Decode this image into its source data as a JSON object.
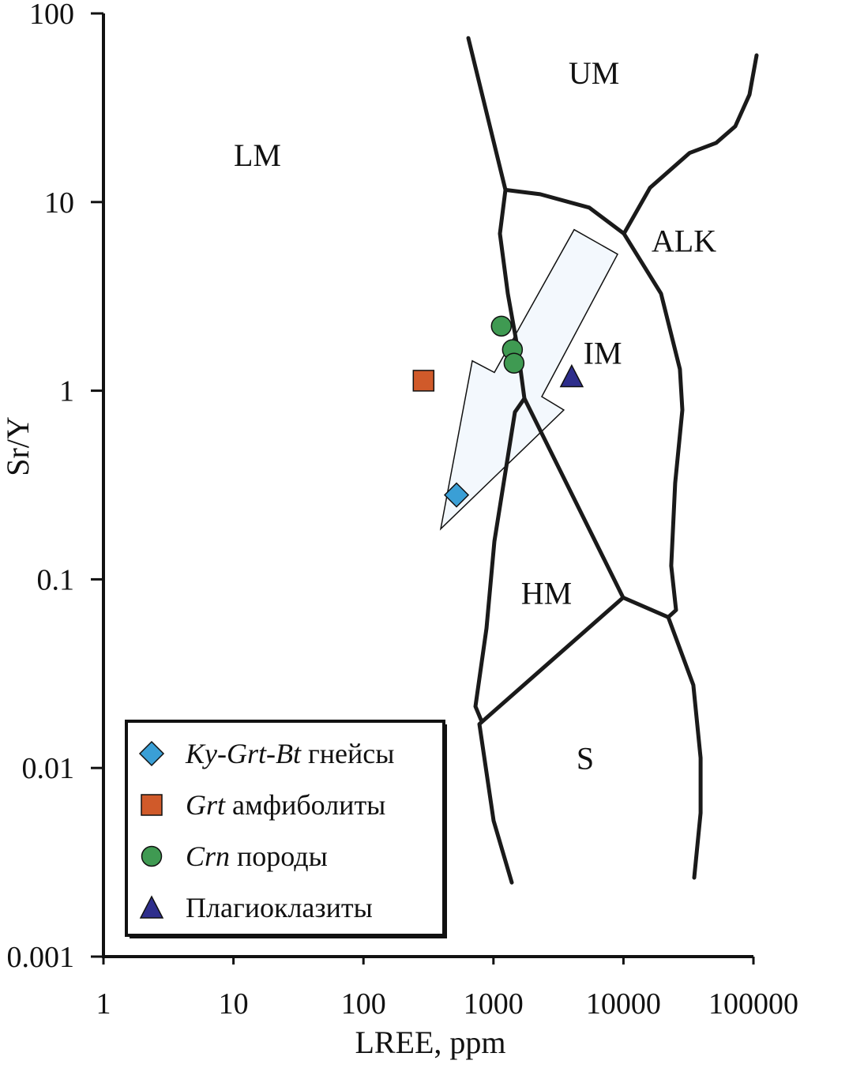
{
  "chart_data": {
    "type": "scatter",
    "title": "",
    "xlabel": "LREE, ppm",
    "ylabel": "Sr/Y",
    "xscale": "log",
    "yscale": "log",
    "xlim": [
      1,
      100000
    ],
    "ylim": [
      0.001,
      100
    ],
    "xticks": [
      {
        "v": 1,
        "label": "1"
      },
      {
        "v": 10,
        "label": "10"
      },
      {
        "v": 100,
        "label": "100"
      },
      {
        "v": 1000,
        "label": "1000"
      },
      {
        "v": 10000,
        "label": "10000"
      },
      {
        "v": 100000,
        "label": "100000"
      }
    ],
    "yticks": [
      {
        "v": 0.001,
        "label": "0.001"
      },
      {
        "v": 0.01,
        "label": "0.01"
      },
      {
        "v": 0.1,
        "label": "0.1"
      },
      {
        "v": 1,
        "label": "1"
      },
      {
        "v": 10,
        "label": "10"
      },
      {
        "v": 100,
        "label": "100"
      }
    ],
    "grid": false,
    "legend_placement": "bottom-left",
    "series": [
      {
        "italic": "Ky-Grt-Bt",
        "name": " гнейсы",
        "marker": "diamond",
        "color": "#3a9fd6",
        "points": [
          [
            520,
            0.28
          ]
        ]
      },
      {
        "italic": "Grt",
        "name": " амфиболиты",
        "marker": "square",
        "color": "#d05a2a",
        "points": [
          [
            290,
            1.13
          ]
        ]
      },
      {
        "italic": "Crn",
        "name": " породы",
        "marker": "circle",
        "color": "#3f9a52",
        "points": [
          [
            1150,
            2.2
          ],
          [
            1400,
            1.65
          ],
          [
            1440,
            1.4
          ]
        ]
      },
      {
        "italic": "",
        "name": "Плагиоклазиты",
        "marker": "triangle",
        "color": "#2e2e8c",
        "points": [
          [
            4000,
            1.19
          ]
        ]
      }
    ],
    "boundaries": [
      [
        [
          641,
          74
        ],
        [
          1237,
          11.6
        ],
        [
          1122,
          6.8
        ],
        [
          1290,
          3.27
        ],
        [
          1548,
          1.62
        ],
        [
          1730,
          0.91
        ],
        [
          1463,
          0.77
        ],
        [
          1017,
          0.159
        ],
        [
          884,
          0.055
        ],
        [
          727,
          0.0212
        ],
        [
          802,
          0.018
        ]
      ],
      [
        [
          1237,
          11.6
        ],
        [
          2290,
          11.0
        ],
        [
          5450,
          9.35
        ],
        [
          10090,
          6.8
        ],
        [
          19460,
          3.27
        ],
        [
          27200,
          1.3
        ],
        [
          28400,
          0.79
        ],
        [
          25000,
          0.324
        ],
        [
          23300,
          0.118
        ],
        [
          25400,
          0.0687
        ],
        [
          22100,
          0.063
        ],
        [
          34500,
          0.0275
        ],
        [
          39200,
          0.0113
        ],
        [
          39200,
          0.00578
        ],
        [
          35000,
          0.00262
        ]
      ],
      [
        [
          10090,
          6.8
        ],
        [
          16000,
          11.9
        ],
        [
          32200,
          18.2
        ],
        [
          51800,
          20.6
        ],
        [
          72500,
          25.2
        ],
        [
          93300,
          37.1
        ],
        [
          105800,
          60.0
        ]
      ],
      [
        [
          1730,
          0.91
        ],
        [
          9950,
          0.08
        ],
        [
          22100,
          0.063
        ]
      ],
      [
        [
          9950,
          0.08
        ],
        [
          780,
          0.0171
        ],
        [
          1003,
          0.00525
        ],
        [
          1383,
          0.00247
        ]
      ]
    ],
    "trend_arrow": {
      "fill": "#f3f8fd",
      "points": [
        [
          393,
          0.185
        ],
        [
          687,
          1.44
        ],
        [
          1017,
          1.25
        ],
        [
          4180,
          7.14
        ],
        [
          9020,
          5.29
        ],
        [
          2353,
          0.93
        ],
        [
          3480,
          0.79
        ]
      ]
    },
    "fields": [
      {
        "label": "UM",
        "at": [
          5930,
          48.5
        ]
      },
      {
        "label": "LM",
        "at": [
          15.3,
          17.8
        ]
      },
      {
        "label": "ALK",
        "at": [
          29200,
          6.24
        ]
      },
      {
        "label": "IM",
        "at": [
          6920,
          1.59
        ]
      },
      {
        "label": "HM",
        "at": [
          2560,
          0.085
        ]
      },
      {
        "label": "S",
        "at": [
          5080,
          0.0113
        ]
      }
    ]
  }
}
